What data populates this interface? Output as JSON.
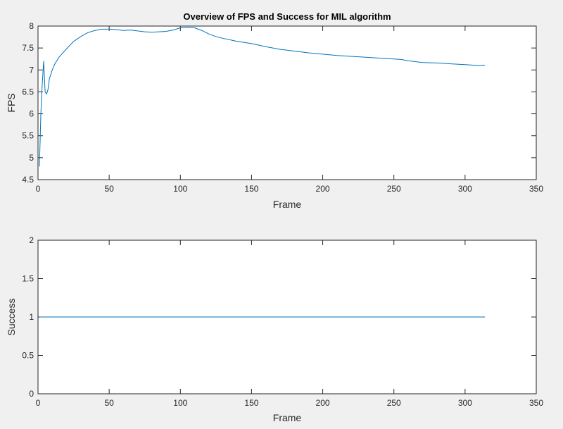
{
  "figure": {
    "background": "#f0f0f0",
    "axes_background": "#ffffff",
    "axes_color": "#262626",
    "line_color": "#0072bd"
  },
  "chart_data": [
    {
      "type": "line",
      "title": "Overview of FPS and Success for MIL algorithm",
      "xlabel": "Frame",
      "ylabel": "FPS",
      "xlim": [
        0,
        350
      ],
      "ylim": [
        4.5,
        8
      ],
      "xticks": [
        0,
        50,
        100,
        150,
        200,
        250,
        300,
        350
      ],
      "yticks": [
        4.5,
        5,
        5.5,
        6,
        6.5,
        7,
        7.5,
        8
      ],
      "xtick_labels": [
        "0",
        "50",
        "100",
        "150",
        "200",
        "250",
        "300",
        "350"
      ],
      "ytick_labels": [
        "4.5",
        "5",
        "5.5",
        "6",
        "6.5",
        "7",
        "7.5",
        "8"
      ],
      "grid": false,
      "series": [
        {
          "x": [
            1,
            2,
            3,
            4,
            5,
            6,
            7,
            8,
            10,
            12,
            15,
            20,
            25,
            30,
            35,
            40,
            45,
            50,
            55,
            60,
            65,
            70,
            75,
            80,
            85,
            90,
            95,
            100,
            105,
            110,
            115,
            120,
            125,
            130,
            140,
            150,
            160,
            170,
            180,
            190,
            200,
            210,
            220,
            230,
            240,
            250,
            255,
            260,
            265,
            270,
            280,
            290,
            300,
            305,
            310,
            314
          ],
          "y": [
            4.8,
            6.0,
            6.7,
            7.2,
            6.5,
            6.45,
            6.55,
            6.8,
            7.0,
            7.15,
            7.3,
            7.48,
            7.65,
            7.76,
            7.85,
            7.9,
            7.93,
            7.93,
            7.92,
            7.9,
            7.91,
            7.89,
            7.87,
            7.86,
            7.87,
            7.88,
            7.91,
            7.96,
            7.97,
            7.96,
            7.9,
            7.82,
            7.76,
            7.72,
            7.65,
            7.6,
            7.53,
            7.47,
            7.43,
            7.39,
            7.36,
            7.33,
            7.31,
            7.29,
            7.27,
            7.25,
            7.24,
            7.21,
            7.19,
            7.17,
            7.16,
            7.14,
            7.12,
            7.11,
            7.1,
            7.11
          ]
        }
      ]
    },
    {
      "type": "line",
      "title": "",
      "xlabel": "Frame",
      "ylabel": "Success",
      "xlim": [
        0,
        350
      ],
      "ylim": [
        0,
        2
      ],
      "xticks": [
        0,
        50,
        100,
        150,
        200,
        250,
        300,
        350
      ],
      "yticks": [
        0,
        0.5,
        1,
        1.5,
        2
      ],
      "xtick_labels": [
        "0",
        "50",
        "100",
        "150",
        "200",
        "250",
        "300",
        "350"
      ],
      "ytick_labels": [
        "0",
        "0.5",
        "1",
        "1.5",
        "2"
      ],
      "grid": false,
      "series": [
        {
          "x": [
            1,
            314
          ],
          "y": [
            1,
            1
          ]
        }
      ]
    }
  ]
}
